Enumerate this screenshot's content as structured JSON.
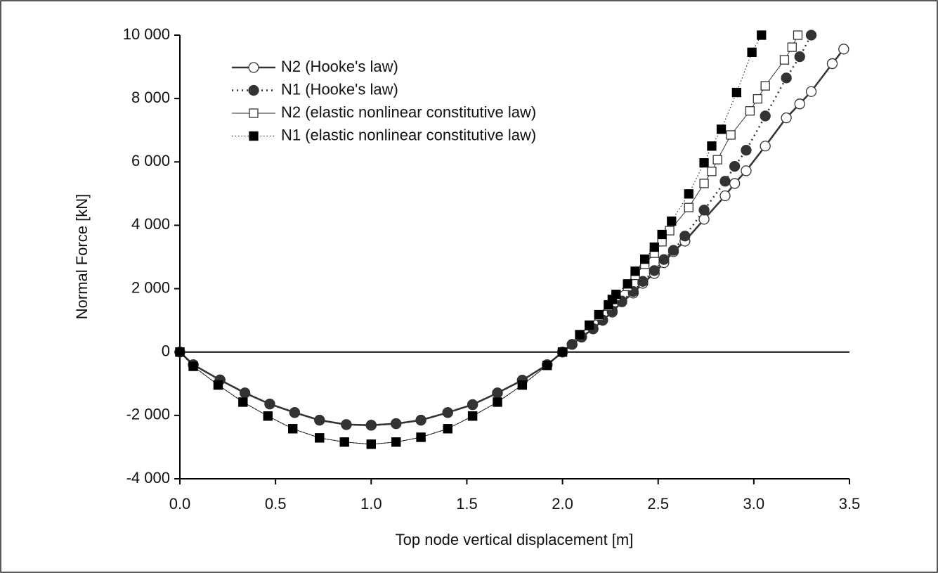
{
  "chart_data": {
    "type": "line",
    "xlabel": "Top node vertical displacement [m]",
    "ylabel": "Normal Force [kN]",
    "xlim": [
      0,
      3.5
    ],
    "ylim": [
      -4000,
      10000
    ],
    "xticks": [
      {
        "value": 0,
        "label": "0.0"
      },
      0.5,
      {
        "value": 1,
        "label": "1.0"
      },
      1.5,
      {
        "value": 2,
        "label": "2.0"
      },
      2.5,
      {
        "value": 3,
        "label": "3.0"
      },
      3.5
    ],
    "yticks": [
      {
        "value": -4000,
        "label": "-4 000"
      },
      {
        "value": -2000,
        "label": "-2 000"
      },
      0,
      {
        "value": 2000,
        "label": "2 000"
      },
      {
        "value": 4000,
        "label": "4 000"
      },
      {
        "value": 6000,
        "label": "6 000"
      },
      {
        "value": 8000,
        "label": "8 000"
      },
      {
        "value": 10000,
        "label": "10 000"
      }
    ],
    "legend": "upper left",
    "series": [
      {
        "name": "N2 (Hooke's law)",
        "color": "#333333",
        "marker": "circle-open",
        "line": "solid-thick",
        "x": [
          0,
          0.07,
          0.21,
          0.34,
          0.47,
          0.6,
          0.73,
          0.87,
          1.0,
          1.13,
          1.26,
          1.4,
          1.53,
          1.66,
          1.79,
          1.92,
          2.0,
          2.05,
          2.1,
          2.16,
          2.21,
          2.26,
          2.31,
          2.37,
          2.42,
          2.48,
          2.53,
          2.58,
          2.64,
          2.74,
          2.85,
          2.9,
          2.96,
          3.06,
          3.17,
          3.24,
          3.3,
          3.41,
          3.47
        ],
        "values": [
          0,
          -400,
          -880,
          -1290,
          -1640,
          -1910,
          -2150,
          -2290,
          -2310,
          -2260,
          -2150,
          -1910,
          -1660,
          -1290,
          -890,
          -400,
          0,
          240,
          470,
          730,
          1000,
          1260,
          1580,
          1860,
          2170,
          2480,
          2820,
          3170,
          3500,
          4190,
          4930,
          5320,
          5720,
          6500,
          7390,
          7830,
          8220,
          9100,
          9560
        ]
      },
      {
        "name": "N1 (Hooke's law)",
        "color": "#333333",
        "marker": "circle-filled",
        "line": "dotted-thick",
        "x": [
          0,
          0.07,
          0.21,
          0.34,
          0.47,
          0.6,
          0.73,
          0.87,
          1.0,
          1.13,
          1.26,
          1.4,
          1.53,
          1.66,
          1.79,
          1.92,
          2.0,
          2.05,
          2.1,
          2.16,
          2.21,
          2.26,
          2.31,
          2.37,
          2.42,
          2.48,
          2.53,
          2.58,
          2.64,
          2.74,
          2.85,
          2.9,
          2.96,
          3.06,
          3.17,
          3.24,
          3.3
        ],
        "values": [
          0,
          -400,
          -880,
          -1290,
          -1640,
          -1910,
          -2150,
          -2290,
          -2310,
          -2260,
          -2150,
          -1910,
          -1660,
          -1290,
          -890,
          -400,
          0,
          240,
          480,
          740,
          1010,
          1290,
          1610,
          1910,
          2230,
          2570,
          2920,
          3210,
          3660,
          4480,
          5390,
          5860,
          6370,
          7450,
          8650,
          9320,
          10000
        ]
      },
      {
        "name": "N2 (elastic nonlinear constitutive law)",
        "color": "#333333",
        "marker": "square-open",
        "line": "solid-thin",
        "x": [
          0,
          0.07,
          0.2,
          0.33,
          0.46,
          0.59,
          0.73,
          0.86,
          1.0,
          1.13,
          1.26,
          1.4,
          1.53,
          1.66,
          1.79,
          1.92,
          2.0,
          2.09,
          2.14,
          2.19,
          2.24,
          2.28,
          2.34,
          2.38,
          2.43,
          2.48,
          2.52,
          2.56,
          2.66,
          2.74,
          2.78,
          2.81,
          2.88,
          2.98,
          3.02,
          3.06,
          3.16,
          3.2,
          3.23
        ],
        "values": [
          0,
          -450,
          -1040,
          -1580,
          -2020,
          -2420,
          -2710,
          -2840,
          -2910,
          -2840,
          -2690,
          -2420,
          -2020,
          -1580,
          -1040,
          -420,
          0,
          540,
          830,
          1140,
          1450,
          1760,
          2070,
          2420,
          2770,
          3120,
          3480,
          3830,
          4560,
          5320,
          5700,
          6070,
          6850,
          7610,
          7990,
          8400,
          9220,
          9620,
          10000
        ]
      },
      {
        "name": "N1 (elastic nonlinear constitutive law)",
        "color": "#000000",
        "marker": "square-filled",
        "line": "dotted-thin",
        "x": [
          0,
          0.07,
          0.2,
          0.33,
          0.46,
          0.59,
          0.73,
          0.86,
          1.0,
          1.13,
          1.26,
          1.4,
          1.53,
          1.66,
          1.79,
          1.92,
          2.0,
          2.09,
          2.14,
          2.19,
          2.24,
          2.26,
          2.28,
          2.34,
          2.38,
          2.43,
          2.48,
          2.52,
          2.57,
          2.66,
          2.74,
          2.78,
          2.83,
          2.91,
          2.99,
          3.04
        ],
        "values": [
          0,
          -450,
          -1040,
          -1580,
          -2020,
          -2420,
          -2710,
          -2840,
          -2910,
          -2840,
          -2690,
          -2420,
          -2020,
          -1580,
          -1040,
          -420,
          0,
          550,
          850,
          1180,
          1490,
          1660,
          1820,
          2150,
          2550,
          2930,
          3310,
          3710,
          4130,
          4990,
          5970,
          6500,
          7030,
          8190,
          9460,
          10000
        ]
      }
    ]
  }
}
